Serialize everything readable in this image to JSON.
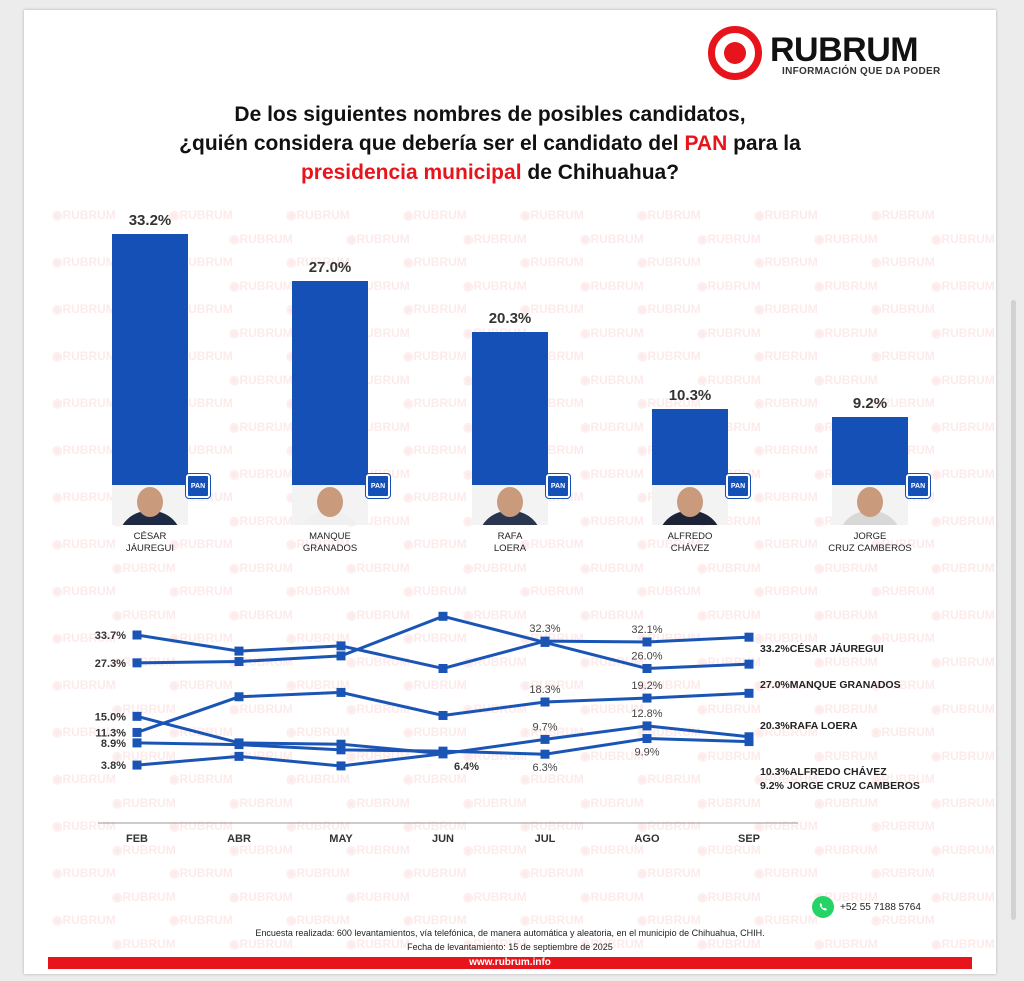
{
  "logo": {
    "name": "RUBRUM",
    "tagline": "INFORMACIÓN QUE DA PODER"
  },
  "question": {
    "line1": "De los siguientes nombres de posibles candidatos,",
    "line2_a": "¿quién considera que debería ser el candidato del ",
    "line2_red": "PAN",
    "line2_b": " para la",
    "line3_red": "presidencia municipal",
    "line3_b": " de Chihuahua?"
  },
  "watermark_text": "RUBRUM",
  "party_badge": "PAN",
  "colors": {
    "brand_red": "#e8141b",
    "bar_blue": "#1550b6",
    "line_blue": "#1a55b5"
  },
  "chart_data": [
    {
      "type": "bar",
      "categories": [
        "CÉSAR\nJÁUREGUI",
        "MANQUE\nGRANADOS",
        "RAFA\nLOERA",
        "ALFREDO\nCHÁVEZ",
        "JORGE\nCRUZ CAMBEROS"
      ],
      "values": [
        33.2,
        27.0,
        20.3,
        10.3,
        9.2
      ],
      "value_labels": [
        "33.2%",
        "27.0%",
        "20.3%",
        "10.3%",
        "9.2%"
      ],
      "ylim": [
        0,
        33.2
      ]
    },
    {
      "type": "line",
      "x": [
        "FEB",
        "ABR",
        "MAY",
        "JUN",
        "JUL",
        "AGO",
        "SEP"
      ],
      "series": [
        {
          "name": "CÉSAR JÁUREGUI",
          "values": [
            33.7,
            30.0,
            31.2,
            26.0,
            32.3,
            32.1,
            33.2
          ]
        },
        {
          "name": "MANQUE GRANADOS",
          "values": [
            27.3,
            27.6,
            28.9,
            38.0,
            32.0,
            26.0,
            27.0
          ]
        },
        {
          "name": "RAFA LOERA",
          "values": [
            11.3,
            19.5,
            20.5,
            15.2,
            18.3,
            19.2,
            20.3
          ]
        },
        {
          "name": "ALFREDO CHÁVEZ",
          "values": [
            15.0,
            8.9,
            8.6,
            6.4,
            9.7,
            12.8,
            10.3
          ]
        },
        {
          "name": "JORGE CRUZ CAMBEROS",
          "values": [
            8.9,
            8.5,
            7.3,
            7.0,
            6.3,
            9.9,
            9.2
          ]
        },
        {
          "name": "",
          "values": [
            3.8,
            5.8,
            3.6,
            6.4,
            null,
            null,
            null
          ]
        }
      ],
      "point_labels": [
        {
          "text": "33.7%",
          "series": 0,
          "i": 0,
          "pos": "left"
        },
        {
          "text": "27.3%",
          "series": 1,
          "i": 0,
          "pos": "left"
        },
        {
          "text": "15.0%",
          "series": 3,
          "i": 0,
          "pos": "left"
        },
        {
          "text": "11.3%",
          "series": 2,
          "i": 0,
          "pos": "left"
        },
        {
          "text": "8.9%",
          "series": 4,
          "i": 0,
          "pos": "left"
        },
        {
          "text": "3.8%",
          "series": 5,
          "i": 0,
          "pos": "left"
        },
        {
          "text": "32.3%",
          "series": 0,
          "i": 4,
          "pos": "above"
        },
        {
          "text": "32.1%",
          "series": 0,
          "i": 5,
          "pos": "above"
        },
        {
          "text": "26.0%",
          "series": 1,
          "i": 5,
          "pos": "above"
        },
        {
          "text": "18.3%",
          "series": 2,
          "i": 4,
          "pos": "above"
        },
        {
          "text": "19.2%",
          "series": 2,
          "i": 5,
          "pos": "above"
        },
        {
          "text": "12.8%",
          "series": 3,
          "i": 5,
          "pos": "above"
        },
        {
          "text": "9.7%",
          "series": 3,
          "i": 4,
          "pos": "above"
        },
        {
          "text": "9.9%",
          "series": 4,
          "i": 5,
          "pos": "below"
        },
        {
          "text": "6.3%",
          "series": 4,
          "i": 4,
          "pos": "below"
        },
        {
          "text": "6.4%",
          "series": 3,
          "i": 3,
          "pos": "right-bold"
        }
      ],
      "end_labels": [
        "33.2%CÉSAR JÁUREGUI",
        "27.0%MANQUE GRANADOS",
        "20.3%RAFA LOERA",
        "10.3%ALFREDO CHÁVEZ",
        "9.2%   JORGE CRUZ CAMBEROS"
      ]
    }
  ],
  "footer": {
    "phone": "+52 55 7188 5764",
    "survey": "Encuesta realizada: 600 levantamientos, vía telefónica, de manera automática y aleatoria, en el municipio de Chihuahua, CHIH.",
    "date": "Fecha de levantamiento: 15 de septiembre de 2025",
    "url": "www.rubrum.info"
  }
}
